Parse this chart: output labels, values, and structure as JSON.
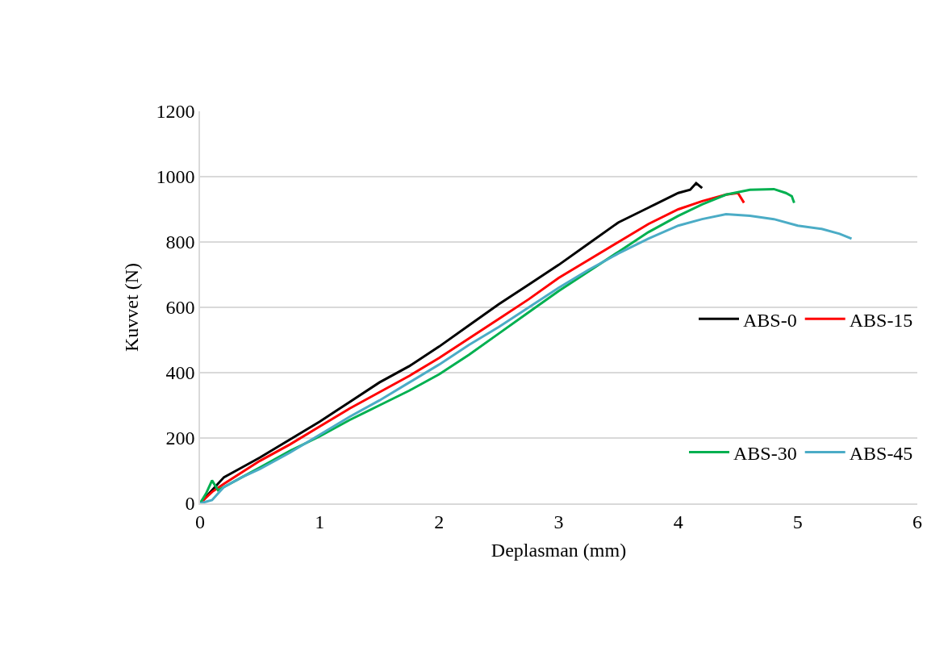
{
  "chart_data": {
    "type": "line",
    "xlabel": "Deplasman (mm)",
    "ylabel": "Kuvvet (N)",
    "xlim": [
      0,
      6
    ],
    "xticks": [
      0,
      1,
      2,
      3,
      4,
      5,
      6
    ],
    "ylim": [
      0,
      1200
    ],
    "yticks": [
      0,
      200,
      400,
      600,
      800,
      1000,
      1200
    ],
    "grid": "y",
    "legend": "right",
    "marker": "none",
    "line_style": "solid",
    "series": [
      {
        "name": "ABS-0",
        "color": "#000000",
        "x": [
          0,
          0.1,
          0.2,
          0.35,
          0.5,
          0.75,
          1,
          1.25,
          1.5,
          1.75,
          2,
          2.25,
          2.5,
          2.75,
          3,
          3.25,
          3.5,
          3.75,
          4,
          4.1,
          4.15,
          4.2
        ],
        "values": [
          0,
          40,
          80,
          110,
          140,
          195,
          250,
          310,
          370,
          420,
          480,
          545,
          610,
          670,
          730,
          795,
          860,
          905,
          950,
          960,
          980,
          965
        ]
      },
      {
        "name": "ABS-15",
        "color": "#ff0000",
        "x": [
          0,
          0.1,
          0.2,
          0.35,
          0.5,
          0.75,
          1,
          1.25,
          1.5,
          1.75,
          2,
          2.25,
          2.5,
          2.75,
          3,
          3.25,
          3.5,
          3.75,
          4,
          4.2,
          4.4,
          4.5,
          4.55
        ],
        "values": [
          0,
          35,
          60,
          95,
          130,
          180,
          235,
          290,
          340,
          390,
          445,
          505,
          565,
          625,
          690,
          745,
          800,
          855,
          900,
          925,
          945,
          950,
          920
        ]
      },
      {
        "name": "ABS-30",
        "color": "#00b050",
        "x": [
          0,
          0.05,
          0.1,
          0.15,
          0.2,
          0.35,
          0.5,
          0.75,
          1,
          1.25,
          1.5,
          1.75,
          2,
          2.25,
          2.5,
          2.75,
          3,
          3.25,
          3.5,
          3.75,
          4,
          4.2,
          4.4,
          4.6,
          4.8,
          4.9,
          4.95,
          4.97
        ],
        "values": [
          0,
          30,
          70,
          40,
          50,
          80,
          110,
          160,
          205,
          255,
          300,
          345,
          395,
          455,
          520,
          585,
          650,
          710,
          770,
          830,
          880,
          915,
          945,
          960,
          962,
          950,
          940,
          920
        ]
      },
      {
        "name": "ABS-45",
        "color": "#4bacc6",
        "x": [
          0,
          0.05,
          0.1,
          0.15,
          0.2,
          0.35,
          0.5,
          0.75,
          1,
          1.25,
          1.5,
          1.75,
          2,
          2.25,
          2.5,
          2.75,
          3,
          3.25,
          3.5,
          3.75,
          4,
          4.2,
          4.4,
          4.6,
          4.8,
          5,
          5.2,
          5.35,
          5.45
        ],
        "values": [
          0,
          5,
          10,
          30,
          50,
          80,
          105,
          155,
          210,
          265,
          315,
          370,
          425,
          485,
          540,
          600,
          660,
          715,
          765,
          810,
          850,
          870,
          885,
          880,
          870,
          850,
          840,
          825,
          810
        ]
      }
    ]
  }
}
